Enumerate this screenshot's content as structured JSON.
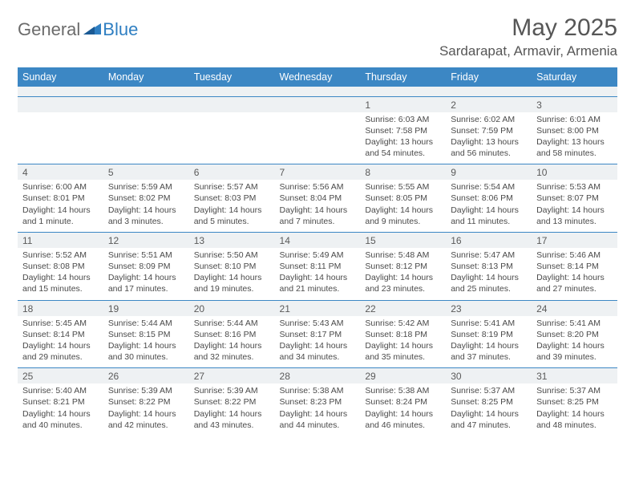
{
  "brand": {
    "part1": "General",
    "part2": "Blue"
  },
  "title": "May 2025",
  "location": "Sardarapat, Armavir, Armenia",
  "colors": {
    "header_bg": "#3c87c4",
    "header_text": "#ffffff",
    "num_row_bg": "#eef1f3",
    "divider": "#3c87c4",
    "body_text": "#4a4a4a",
    "title_text": "#565656",
    "logo_gray": "#6b6b6b",
    "logo_blue": "#2f7fc2"
  },
  "day_names": [
    "Sunday",
    "Monday",
    "Tuesday",
    "Wednesday",
    "Thursday",
    "Friday",
    "Saturday"
  ],
  "weeks": [
    [
      null,
      null,
      null,
      null,
      {
        "n": "1",
        "sr": "6:03 AM",
        "ss": "7:58 PM",
        "dl": "13 hours and 54 minutes."
      },
      {
        "n": "2",
        "sr": "6:02 AM",
        "ss": "7:59 PM",
        "dl": "13 hours and 56 minutes."
      },
      {
        "n": "3",
        "sr": "6:01 AM",
        "ss": "8:00 PM",
        "dl": "13 hours and 58 minutes."
      }
    ],
    [
      {
        "n": "4",
        "sr": "6:00 AM",
        "ss": "8:01 PM",
        "dl": "14 hours and 1 minute."
      },
      {
        "n": "5",
        "sr": "5:59 AM",
        "ss": "8:02 PM",
        "dl": "14 hours and 3 minutes."
      },
      {
        "n": "6",
        "sr": "5:57 AM",
        "ss": "8:03 PM",
        "dl": "14 hours and 5 minutes."
      },
      {
        "n": "7",
        "sr": "5:56 AM",
        "ss": "8:04 PM",
        "dl": "14 hours and 7 minutes."
      },
      {
        "n": "8",
        "sr": "5:55 AM",
        "ss": "8:05 PM",
        "dl": "14 hours and 9 minutes."
      },
      {
        "n": "9",
        "sr": "5:54 AM",
        "ss": "8:06 PM",
        "dl": "14 hours and 11 minutes."
      },
      {
        "n": "10",
        "sr": "5:53 AM",
        "ss": "8:07 PM",
        "dl": "14 hours and 13 minutes."
      }
    ],
    [
      {
        "n": "11",
        "sr": "5:52 AM",
        "ss": "8:08 PM",
        "dl": "14 hours and 15 minutes."
      },
      {
        "n": "12",
        "sr": "5:51 AM",
        "ss": "8:09 PM",
        "dl": "14 hours and 17 minutes."
      },
      {
        "n": "13",
        "sr": "5:50 AM",
        "ss": "8:10 PM",
        "dl": "14 hours and 19 minutes."
      },
      {
        "n": "14",
        "sr": "5:49 AM",
        "ss": "8:11 PM",
        "dl": "14 hours and 21 minutes."
      },
      {
        "n": "15",
        "sr": "5:48 AM",
        "ss": "8:12 PM",
        "dl": "14 hours and 23 minutes."
      },
      {
        "n": "16",
        "sr": "5:47 AM",
        "ss": "8:13 PM",
        "dl": "14 hours and 25 minutes."
      },
      {
        "n": "17",
        "sr": "5:46 AM",
        "ss": "8:14 PM",
        "dl": "14 hours and 27 minutes."
      }
    ],
    [
      {
        "n": "18",
        "sr": "5:45 AM",
        "ss": "8:14 PM",
        "dl": "14 hours and 29 minutes."
      },
      {
        "n": "19",
        "sr": "5:44 AM",
        "ss": "8:15 PM",
        "dl": "14 hours and 30 minutes."
      },
      {
        "n": "20",
        "sr": "5:44 AM",
        "ss": "8:16 PM",
        "dl": "14 hours and 32 minutes."
      },
      {
        "n": "21",
        "sr": "5:43 AM",
        "ss": "8:17 PM",
        "dl": "14 hours and 34 minutes."
      },
      {
        "n": "22",
        "sr": "5:42 AM",
        "ss": "8:18 PM",
        "dl": "14 hours and 35 minutes."
      },
      {
        "n": "23",
        "sr": "5:41 AM",
        "ss": "8:19 PM",
        "dl": "14 hours and 37 minutes."
      },
      {
        "n": "24",
        "sr": "5:41 AM",
        "ss": "8:20 PM",
        "dl": "14 hours and 39 minutes."
      }
    ],
    [
      {
        "n": "25",
        "sr": "5:40 AM",
        "ss": "8:21 PM",
        "dl": "14 hours and 40 minutes."
      },
      {
        "n": "26",
        "sr": "5:39 AM",
        "ss": "8:22 PM",
        "dl": "14 hours and 42 minutes."
      },
      {
        "n": "27",
        "sr": "5:39 AM",
        "ss": "8:22 PM",
        "dl": "14 hours and 43 minutes."
      },
      {
        "n": "28",
        "sr": "5:38 AM",
        "ss": "8:23 PM",
        "dl": "14 hours and 44 minutes."
      },
      {
        "n": "29",
        "sr": "5:38 AM",
        "ss": "8:24 PM",
        "dl": "14 hours and 46 minutes."
      },
      {
        "n": "30",
        "sr": "5:37 AM",
        "ss": "8:25 PM",
        "dl": "14 hours and 47 minutes."
      },
      {
        "n": "31",
        "sr": "5:37 AM",
        "ss": "8:25 PM",
        "dl": "14 hours and 48 minutes."
      }
    ]
  ],
  "labels": {
    "sunrise": "Sunrise:",
    "sunset": "Sunset:",
    "daylight": "Daylight:"
  }
}
